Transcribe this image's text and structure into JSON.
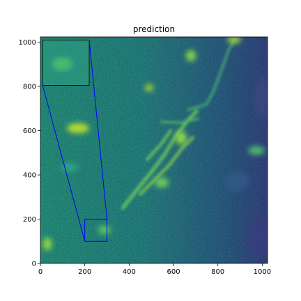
{
  "chart_data": {
    "type": "heatmap",
    "title": "prediction",
    "xlabel": "",
    "ylabel": "",
    "xlim": [
      0,
      1024
    ],
    "ylim": [
      0,
      1024
    ],
    "x_ticks": [
      0,
      200,
      400,
      600,
      800,
      1000
    ],
    "y_ticks": [
      0,
      200,
      400,
      600,
      800,
      1000
    ],
    "x_tick_labels": [
      "0",
      "200",
      "400",
      "600",
      "800",
      "1000"
    ],
    "y_tick_labels": [
      "0",
      "200",
      "400",
      "600",
      "800",
      "1000"
    ],
    "grid": false,
    "colormap": "viridis",
    "zoom_region": {
      "x": [
        200,
        300
      ],
      "y": [
        100,
        200
      ]
    },
    "inset_extent": {
      "x": [
        10,
        220
      ],
      "y": [
        805,
        1010
      ]
    },
    "zoom_box_color": "#0000ff",
    "inset_border_color": "#000000"
  }
}
